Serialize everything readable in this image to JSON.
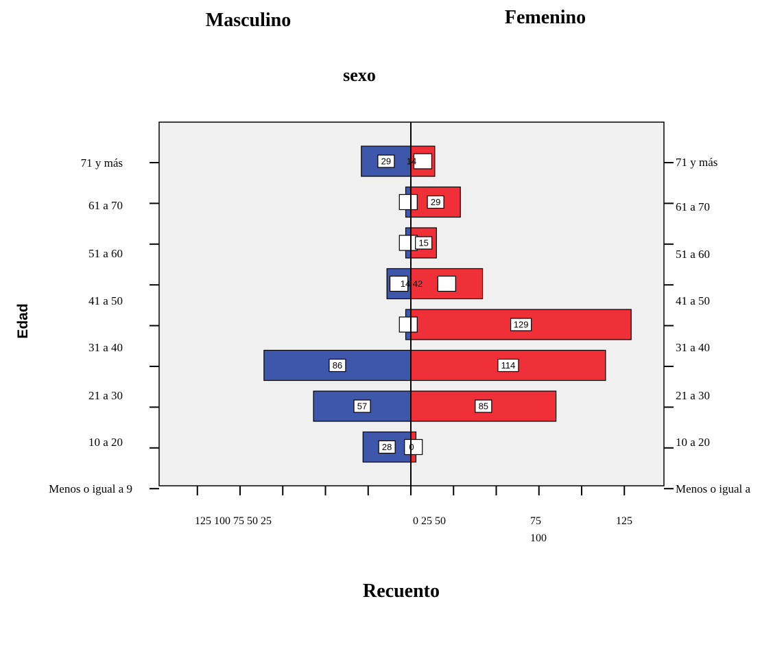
{
  "chart_data": {
    "type": "bar",
    "orientation": "horizontal-population-pyramid",
    "panel_title": "sexo",
    "panel_left_title": "Masculino",
    "panel_right_title": "Femenino",
    "ylabel": "Edad",
    "xlabel": "Recuento",
    "categories": [
      "71 y más",
      "61 a 70",
      "51 a 60",
      "41 a 50",
      "31 a 40",
      "21 a 30",
      "10 a 20",
      "Menos o igual a 9"
    ],
    "right_categories": [
      "71 y más",
      "61 a 70",
      "51 a 60",
      "41 a 50",
      "31 a 40",
      "21 a 30",
      "10 a 20",
      "Menos o igual a"
    ],
    "series": [
      {
        "name": "Masculino",
        "color": "#3f57ab",
        "values": [
          29,
          3,
          3,
          14,
          3,
          86,
          57,
          28
        ],
        "labels": [
          "29",
          "",
          "",
          "",
          "",
          "86",
          "57",
          "28"
        ]
      },
      {
        "name": "Femenino",
        "color": "#ef3038",
        "values": [
          14,
          29,
          15,
          42,
          129,
          114,
          85,
          3
        ],
        "labels": [
          "",
          "29",
          "15",
          "",
          "129",
          "114",
          "85",
          ""
        ]
      }
    ],
    "stray_labels": [
      {
        "text": "14",
        "row": 0
      },
      {
        "text": "14 42",
        "row": 3
      },
      {
        "text": "0",
        "row": 7
      }
    ],
    "xlim": [
      -125,
      150
    ],
    "tick_labels_left": "125 100 75 50 25",
    "tick_labels_right": "0 25 50",
    "tick_label_75": "75",
    "tick_label_100": "100",
    "tick_label_125": "125",
    "grid": false
  }
}
